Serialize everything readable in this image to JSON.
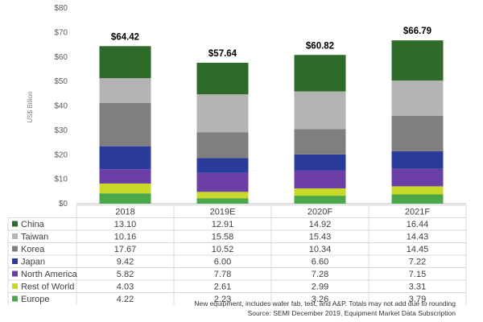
{
  "chart_data": {
    "type": "bar",
    "stacked": true,
    "ylabel": "US$ Billion",
    "ylim": [
      0,
      80
    ],
    "y_ticks": [
      "$0",
      "$10",
      "$20",
      "$30",
      "$40",
      "$50",
      "$60",
      "$70",
      "$80"
    ],
    "y_tick_values": [
      0,
      10,
      20,
      30,
      40,
      50,
      60,
      70,
      80
    ],
    "grid": false,
    "legend": "data-table-left",
    "categories": [
      "2018",
      "2019E",
      "2020F",
      "2021F"
    ],
    "totals": [
      64.42,
      57.64,
      60.82,
      66.79
    ],
    "total_labels": [
      "$64.42",
      "$57.64",
      "$60.82",
      "$66.79"
    ],
    "series": [
      {
        "name": "Europe",
        "color": "#4aa84a",
        "values": [
          4.22,
          2.23,
          3.26,
          3.79
        ],
        "labels": [
          "4.22",
          "2.23",
          "3.26",
          "3.79"
        ]
      },
      {
        "name": "Rest of World",
        "color": "#c8d827",
        "values": [
          4.03,
          2.61,
          2.99,
          3.31
        ],
        "labels": [
          "4.03",
          "2.61",
          "2.99",
          "3.31"
        ]
      },
      {
        "name": "North America",
        "color": "#6b3fa6",
        "values": [
          5.82,
          7.78,
          7.28,
          7.15
        ],
        "labels": [
          "5.82",
          "7.78",
          "7.28",
          "7.15"
        ]
      },
      {
        "name": "Japan",
        "color": "#2a3b9c",
        "values": [
          9.42,
          6.0,
          6.6,
          7.22
        ],
        "labels": [
          "9.42",
          "6.00",
          "6.60",
          "7.22"
        ]
      },
      {
        "name": "Korea",
        "color": "#7f7f7f",
        "values": [
          17.67,
          10.52,
          10.34,
          14.45
        ],
        "labels": [
          "17.67",
          "10.52",
          "10.34",
          "14.45"
        ]
      },
      {
        "name": "Taiwan",
        "color": "#b3b3b3",
        "values": [
          10.16,
          15.58,
          15.43,
          14.43
        ],
        "labels": [
          "10.16",
          "15.58",
          "15.43",
          "14.43"
        ]
      },
      {
        "name": "China",
        "color": "#2e6b2a",
        "values": [
          13.1,
          12.91,
          14.92,
          16.44
        ],
        "labels": [
          "13.10",
          "12.91",
          "14.92",
          "16.44"
        ]
      }
    ],
    "table_order": [
      "China",
      "Taiwan",
      "Korea",
      "Japan",
      "North America",
      "Rest of World",
      "Europe"
    ],
    "footnotes": [
      "New equipment, includes wafer fab, test, and A&P. Totals may not add due to rounding",
      "Source: SEMI December 2019, Equipment Market Data Subscription"
    ]
  }
}
